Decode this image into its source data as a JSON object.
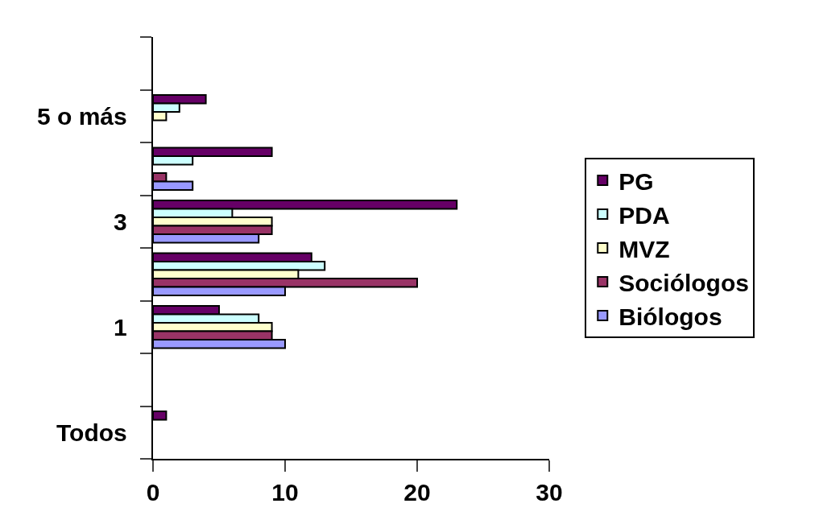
{
  "chart_data": {
    "type": "bar",
    "orientation": "horizontal",
    "categories": [
      null,
      "5 o más",
      null,
      "3",
      null,
      "1",
      null,
      "Todos"
    ],
    "series": [
      {
        "name": "PG",
        "color": "#660066",
        "values": [
          null,
          4,
          9,
          23,
          12,
          5,
          null,
          1
        ]
      },
      {
        "name": "PDA",
        "color": "#ccffff",
        "values": [
          null,
          2,
          3,
          6,
          13,
          8,
          null,
          null
        ]
      },
      {
        "name": "MVZ",
        "color": "#ffffcc",
        "values": [
          null,
          1,
          null,
          9,
          11,
          9,
          null,
          null
        ]
      },
      {
        "name": "Sociólogos",
        "color": "#993366",
        "values": [
          null,
          null,
          1,
          9,
          20,
          9,
          null,
          null
        ]
      },
      {
        "name": "Biólogos",
        "color": "#9999ff",
        "values": [
          null,
          null,
          3,
          8,
          10,
          10,
          null,
          null
        ]
      }
    ],
    "xlim": [
      0,
      30
    ],
    "xticks": [
      0,
      10,
      20,
      30
    ],
    "legend": "right"
  }
}
